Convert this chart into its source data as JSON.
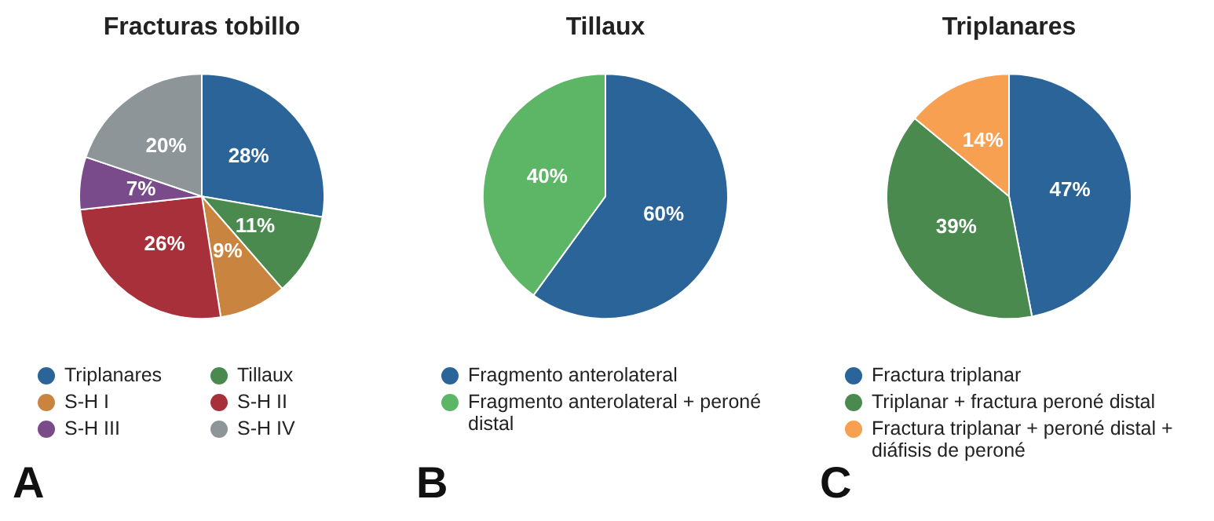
{
  "chart_data": [
    {
      "type": "pie",
      "title": "Fracturas tobillo",
      "categories": [
        "Triplanares",
        "Tillaux",
        "S-H I",
        "S-H II",
        "S-H III",
        "S-H IV"
      ],
      "values": [
        28,
        11,
        9,
        26,
        7,
        20
      ],
      "value_labels": [
        "28%",
        "11%",
        "9%",
        "26%",
        "7%",
        "20%"
      ],
      "colors": [
        "#2b6499",
        "#4a8a4f",
        "#c9853f",
        "#a8303a",
        "#7a4b8b",
        "#8e9598"
      ],
      "legend": "bottom",
      "annotations": [
        "A"
      ]
    },
    {
      "type": "pie",
      "title": "Tillaux",
      "categories": [
        "Fragmento anterolateral",
        "Fragmento anterolateral + peroné distal"
      ],
      "values": [
        60,
        40
      ],
      "value_labels": [
        "60%",
        "40%"
      ],
      "colors": [
        "#2b6499",
        "#5db566"
      ],
      "legend": "bottom",
      "annotations": [
        "B"
      ]
    },
    {
      "type": "pie",
      "title": "Triplanares",
      "categories": [
        "Fractura triplanar",
        "Triplanar + fractura peroné distal",
        "Fractura triplanar + peroné distal + diáfisis de peroné"
      ],
      "values": [
        47,
        39,
        14
      ],
      "value_labels": [
        "47%",
        "39%",
        "14%"
      ],
      "colors": [
        "#2b6499",
        "#4a8a4f",
        "#f8a051"
      ],
      "legend": "bottom",
      "annotations": [
        "C"
      ]
    }
  ]
}
